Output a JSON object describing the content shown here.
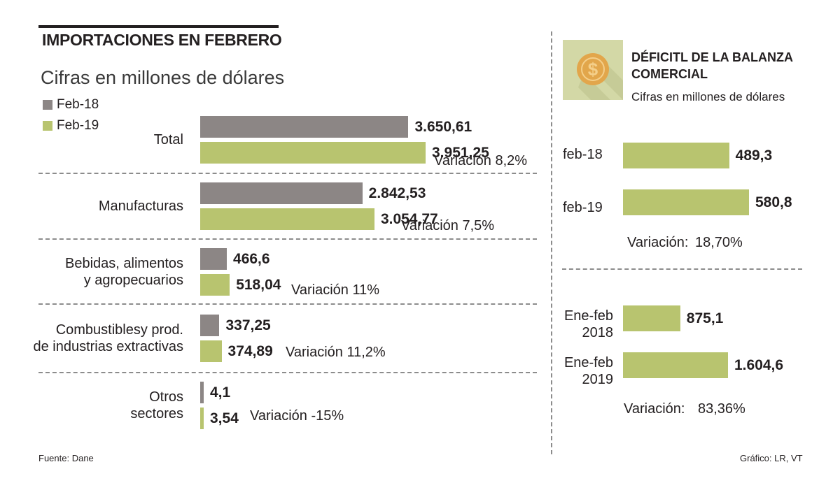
{
  "header": {
    "title": "IMPORTACIONES EN FEBRERO",
    "subtitle": "Cifras en millones de dólares"
  },
  "legend": [
    {
      "label": "Feb-18",
      "color": "#8c8685"
    },
    {
      "label": "Feb-19",
      "color": "#b8c46f"
    }
  ],
  "colors": {
    "gray": "#8c8685",
    "green": "#b8c46f",
    "coin": "#e2a64b"
  },
  "chart_data": [
    {
      "type": "bar",
      "orientation": "horizontal",
      "title": "IMPORTACIONES EN FEBRERO",
      "subtitle": "Cifras en millones de dólares",
      "legend": [
        "Feb-18",
        "Feb-19"
      ],
      "categories": [
        {
          "label": "Total",
          "feb18": 3650.61,
          "feb18_label": "3.650,61",
          "feb19": 3951.25,
          "feb19_label": "3.951,25",
          "variation": "Variación 8,2%"
        },
        {
          "label": "Manufacturas",
          "feb18": 2842.53,
          "feb18_label": "2.842,53",
          "feb19": 3054.77,
          "feb19_label": "3.054,77",
          "variation": "Variación 7,5%"
        },
        {
          "label": "Bebidas, alimentos\ny agropecuarios",
          "feb18": 466.6,
          "feb18_label": "466,6",
          "feb19": 518.04,
          "feb19_label": "518,04",
          "variation": "Variación 11%"
        },
        {
          "label": "Combustiblesy prod.\nde industrias extractivas",
          "feb18": 337.25,
          "feb18_label": "337,25",
          "feb19": 374.89,
          "feb19_label": "374,89",
          "variation": "Variación 11,2%"
        },
        {
          "label": "Otros\nsectores",
          "feb18": 4.1,
          "feb18_label": "4,1",
          "feb19": 3.54,
          "feb19_label": "3,54",
          "variation": "Variación -15%"
        }
      ],
      "xlim": [
        0,
        4000
      ]
    },
    {
      "type": "bar",
      "orientation": "horizontal",
      "title": "DÉFICITL DE LA BALANZA COMERCIAL",
      "subtitle": "Cifras en millones de dólares",
      "groups": [
        {
          "bars": [
            {
              "label": "feb-18",
              "value": 489.3,
              "value_label": "489,3"
            },
            {
              "label": "feb-19",
              "value": 580.8,
              "value_label": "580,8"
            }
          ],
          "variation_label": "Variación:",
          "variation_value": "18,70%"
        },
        {
          "bars": [
            {
              "label": "Ene-feb\n2018",
              "value": 875.1,
              "value_label": "875,1"
            },
            {
              "label": "Ene-feb\n2019",
              "value": 1604.6,
              "value_label": "1.604,6"
            }
          ],
          "variation_label": "Variación:",
          "variation_value": "83,36%"
        }
      ]
    }
  ],
  "coin_symbol": "$",
  "footer": {
    "source": "Fuente: Dane",
    "credit": "Gráfico: LR, VT"
  }
}
